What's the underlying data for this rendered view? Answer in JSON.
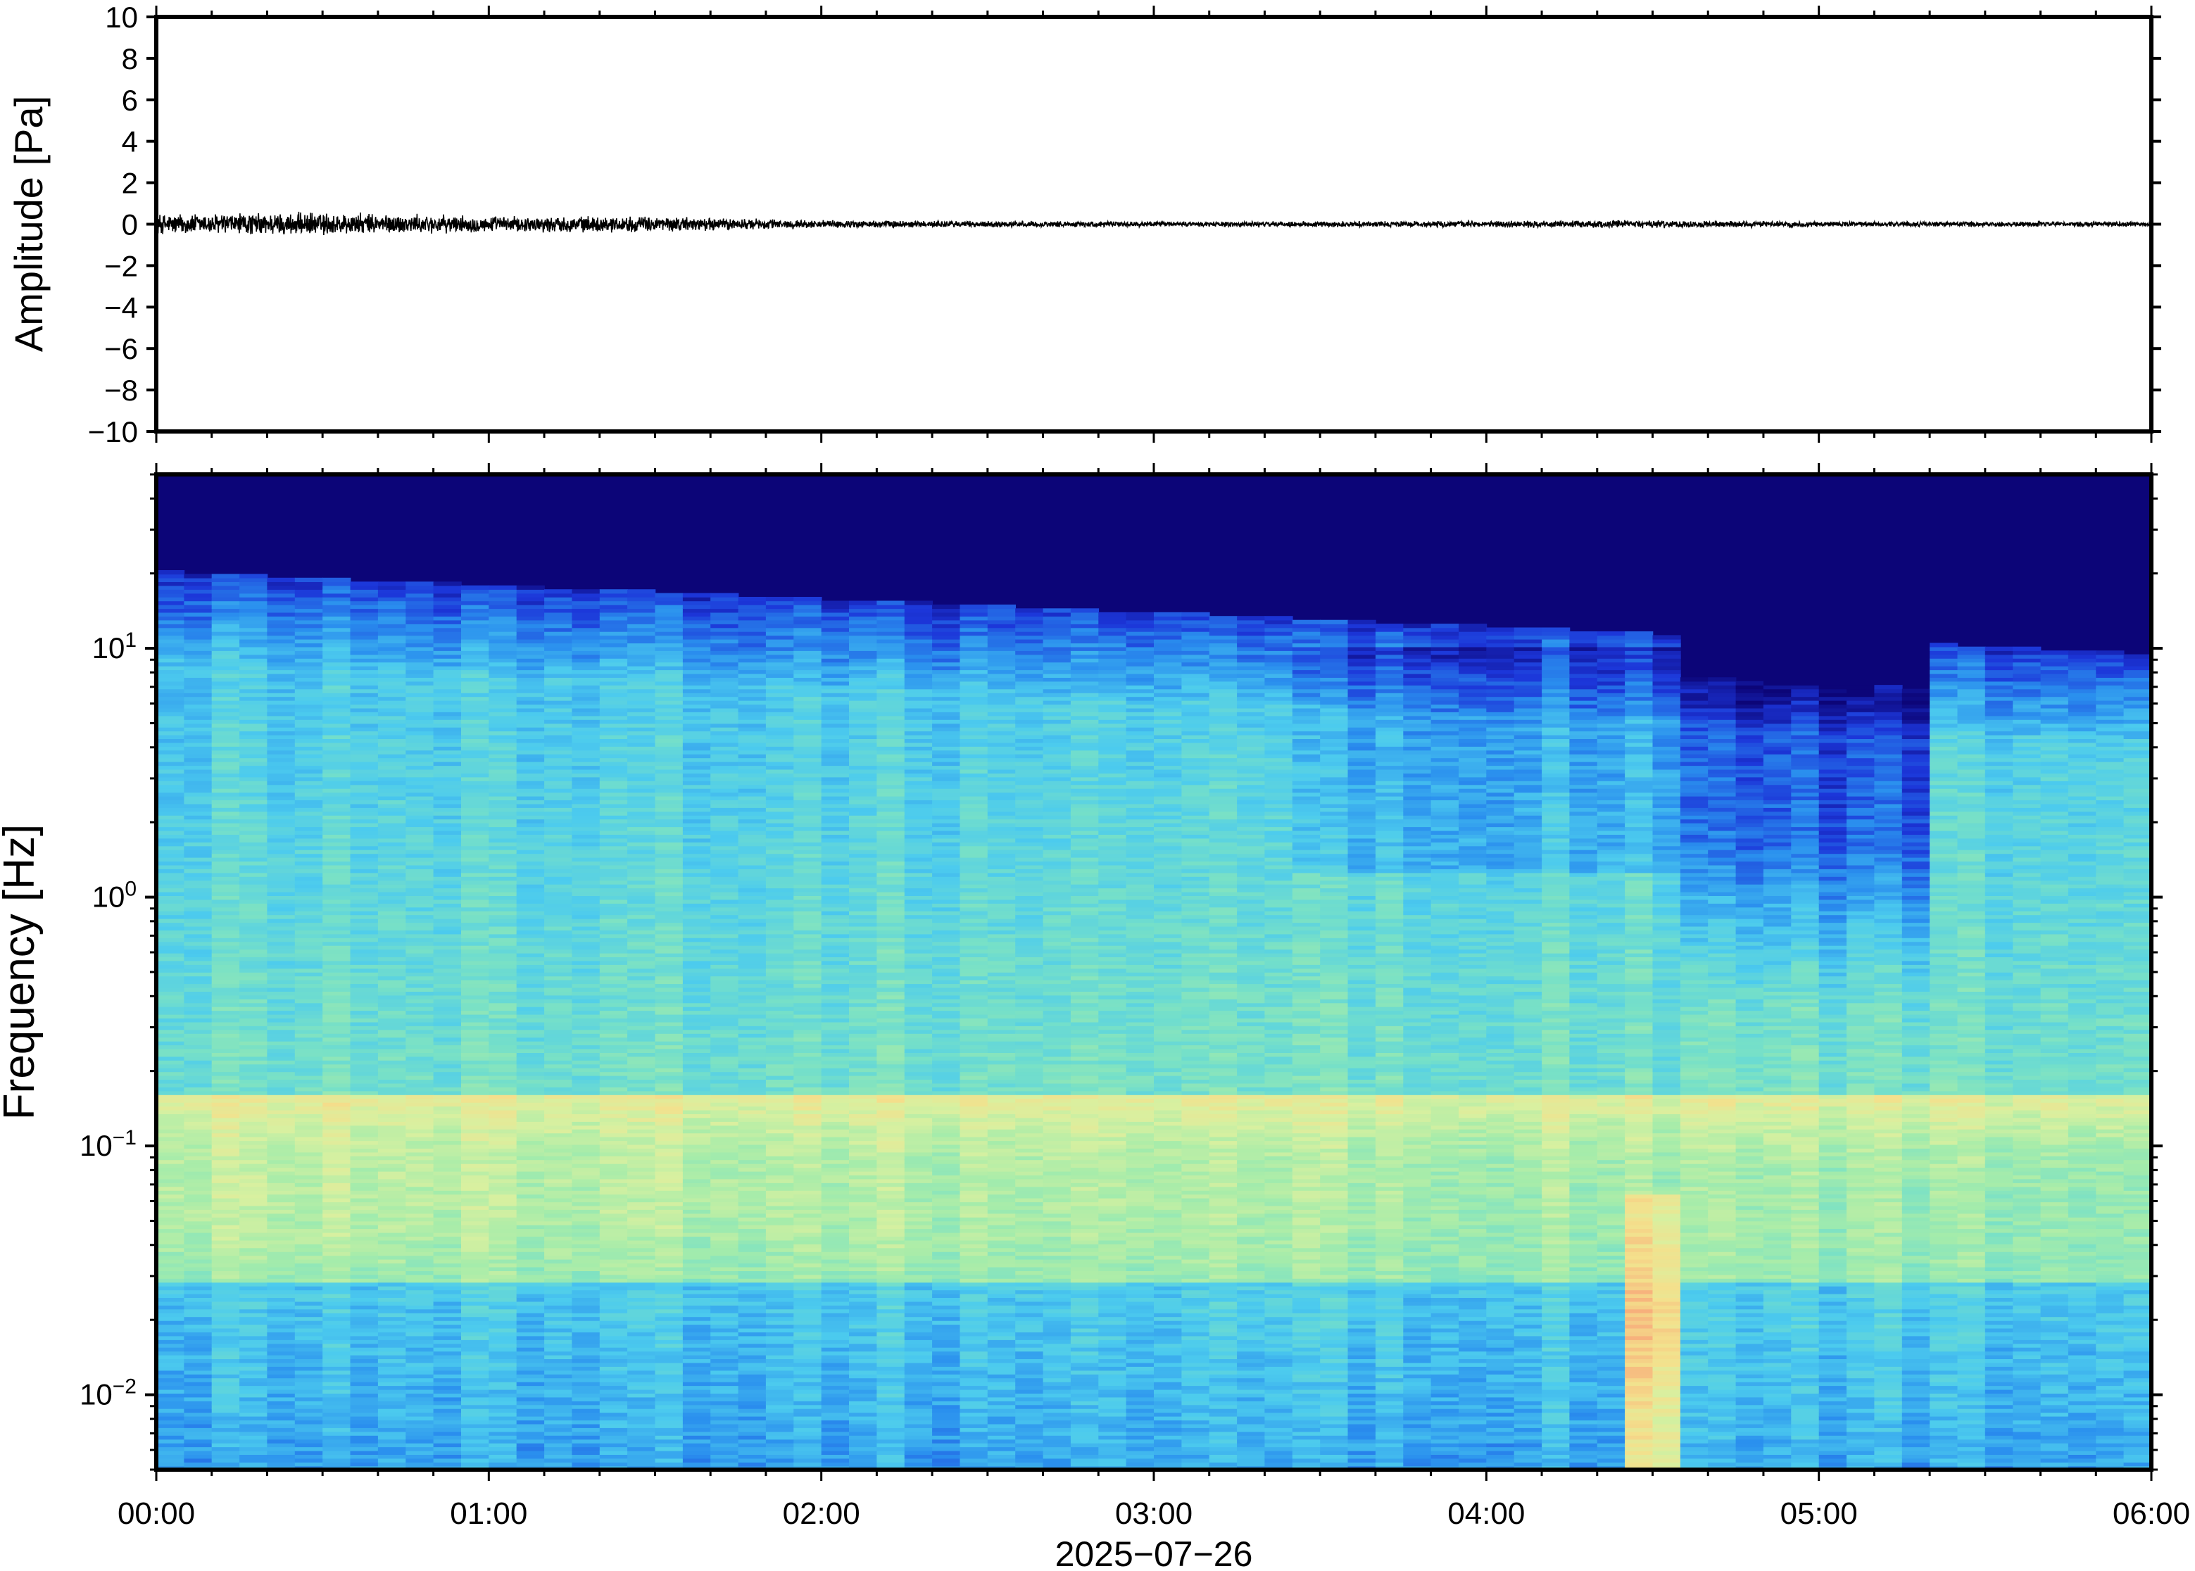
{
  "chart_data": [
    {
      "type": "line",
      "panel": "waveform",
      "ylabel": "Amplitude [Pa]",
      "ylim": [
        -10,
        10
      ],
      "yticks": [
        10,
        8,
        6,
        4,
        2,
        0,
        -2,
        -4,
        -6,
        -8,
        -10
      ],
      "ytick_labels": [
        "10",
        "8",
        "6",
        "4",
        "2",
        "0",
        "−2",
        "−4",
        "−6",
        "−8",
        "−10"
      ],
      "xlim_hours": [
        0,
        6
      ],
      "series_color": "#000000",
      "envelope": {
        "hours": [
          0,
          0.5,
          1.0,
          1.5,
          2.0,
          3.0,
          4.0,
          4.5,
          5.0,
          6.0
        ],
        "amplitude_pa": [
          0.4,
          0.45,
          0.3,
          0.3,
          0.15,
          0.1,
          0.12,
          0.15,
          0.1,
          0.1
        ]
      }
    },
    {
      "type": "heatmap",
      "panel": "spectrogram",
      "ylabel": "Frequency [Hz]",
      "yscale": "log",
      "ylim_hz": [
        0.005,
        50
      ],
      "ytick_labels": [
        {
          "base": "10",
          "exp": "1"
        },
        {
          "base": "10",
          "exp": "0"
        },
        {
          "base": "10",
          "exp": "−1"
        },
        {
          "base": "10",
          "exp": "−2"
        }
      ],
      "ytick_values": [
        10,
        1,
        0.1,
        0.01
      ],
      "xlabel": "2025−07−26",
      "xticks": [
        "00:00",
        "01:00",
        "02:00",
        "03:00",
        "04:00",
        "05:00",
        "06:00"
      ],
      "colormap": [
        "#0c0578",
        "#1c36d9",
        "#2a8fee",
        "#4ccbee",
        "#76e0c8",
        "#a6ecaa",
        "#d8f0a0",
        "#f4e08c",
        "#f7b07c",
        "#f08a66"
      ],
      "quiet_high_frequency_window_hours": [
        4.6,
        5.3
      ],
      "anomaly_column_hours": [
        4.45,
        4.6
      ]
    }
  ]
}
